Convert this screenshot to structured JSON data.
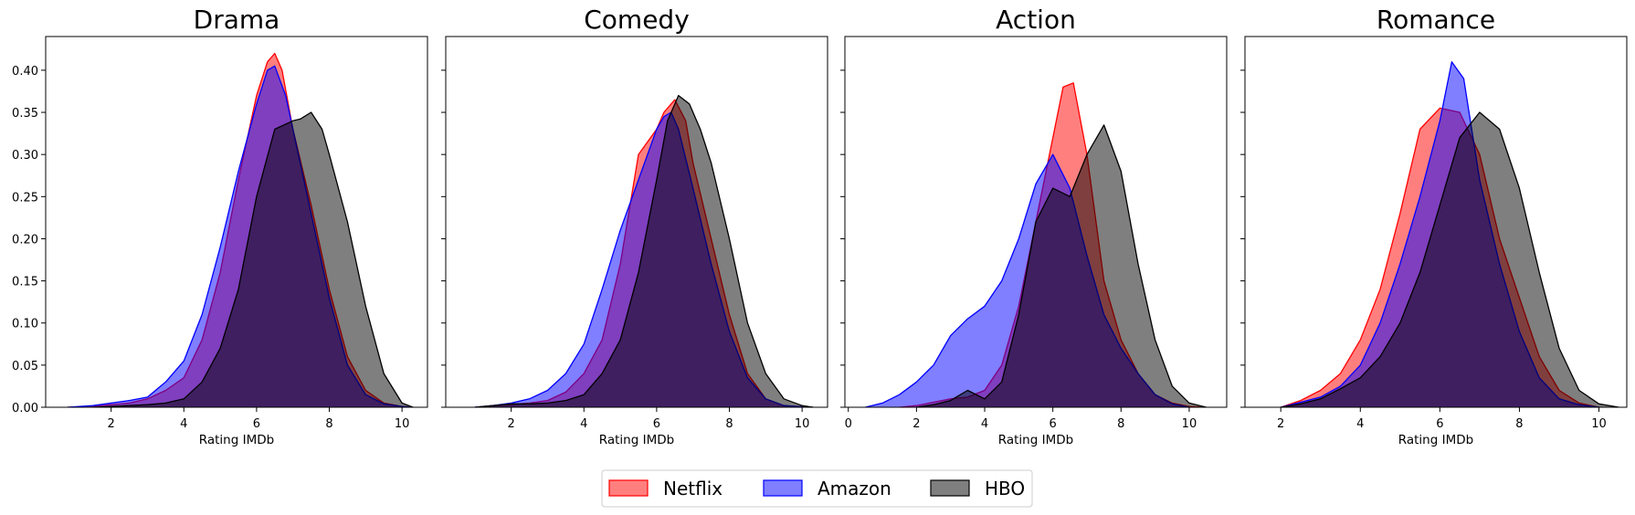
{
  "chart_data": {
    "type": "area",
    "subtype": "kde-density",
    "shared_y": true,
    "ylim": [
      0,
      0.44
    ],
    "yticks": [
      0.0,
      0.05,
      0.1,
      0.15,
      0.2,
      0.25,
      0.3,
      0.35,
      0.4
    ],
    "xlabel": "Rating IMDb",
    "legend": {
      "position": "bottom-center",
      "entries": [
        "Netflix",
        "Amazon",
        "HBO"
      ]
    },
    "colors": {
      "Netflix": "#ff0000",
      "Amazon": "#0000ff",
      "HBO": "#000000"
    },
    "fill_colors": {
      "Netflix": "#ff7f7f",
      "Amazon": "#7f7fff",
      "HBO": "#7f7f7f"
    },
    "panels": [
      {
        "title": "Drama",
        "xlim": [
          0.2,
          10.7
        ],
        "xticks": [
          2,
          4,
          6,
          8,
          10
        ],
        "series": [
          {
            "name": "Netflix",
            "x": [
              0.8,
              1.5,
              2,
              2.5,
              3,
              3.5,
              4,
              4.5,
              5,
              5.5,
              6,
              6.3,
              6.5,
              6.7,
              7,
              7.5,
              8,
              8.5,
              9,
              9.5,
              10,
              10.3
            ],
            "y": [
              0,
              0.001,
              0.003,
              0.005,
              0.01,
              0.02,
              0.035,
              0.08,
              0.16,
              0.27,
              0.37,
              0.41,
              0.42,
              0.4,
              0.33,
              0.24,
              0.14,
              0.06,
              0.02,
              0.005,
              0.001,
              0
            ]
          },
          {
            "name": "Amazon",
            "x": [
              0.8,
              1.5,
              2,
              2.5,
              3,
              3.5,
              4,
              4.5,
              5,
              5.5,
              6,
              6.3,
              6.5,
              6.8,
              7,
              7.5,
              8,
              8.5,
              9,
              9.5,
              10,
              10.3
            ],
            "y": [
              0,
              0.002,
              0.005,
              0.008,
              0.012,
              0.03,
              0.055,
              0.11,
              0.19,
              0.28,
              0.36,
              0.4,
              0.405,
              0.37,
              0.33,
              0.23,
              0.13,
              0.05,
              0.015,
              0.004,
              0.001,
              0
            ]
          },
          {
            "name": "HBO",
            "x": [
              1.5,
              2,
              3,
              3.5,
              4,
              4.5,
              5,
              5.5,
              6,
              6.5,
              7,
              7.2,
              7.5,
              7.8,
              8,
              8.5,
              9,
              9.5,
              10,
              10.3
            ],
            "y": [
              0,
              0.001,
              0.003,
              0.005,
              0.01,
              0.03,
              0.07,
              0.14,
              0.25,
              0.33,
              0.34,
              0.342,
              0.35,
              0.33,
              0.3,
              0.22,
              0.12,
              0.04,
              0.005,
              0
            ]
          }
        ]
      },
      {
        "title": "Comedy",
        "xlim": [
          0.2,
          10.7
        ],
        "xticks": [
          2,
          4,
          6,
          8,
          10
        ],
        "series": [
          {
            "name": "Netflix",
            "x": [
              1,
              1.5,
              2,
              2.5,
              3,
              3.5,
              4,
              4.5,
              5,
              5.5,
              6,
              6.2,
              6.5,
              6.8,
              7,
              7.5,
              8,
              8.5,
              9,
              9.5,
              10,
              10.3
            ],
            "y": [
              0,
              0.002,
              0.003,
              0.005,
              0.008,
              0.018,
              0.04,
              0.08,
              0.17,
              0.3,
              0.33,
              0.35,
              0.365,
              0.34,
              0.29,
              0.2,
              0.11,
              0.04,
              0.01,
              0.002,
              0.0005,
              0
            ]
          },
          {
            "name": "Amazon",
            "x": [
              1,
              1.5,
              2,
              2.5,
              3,
              3.5,
              4,
              4.5,
              5,
              5.5,
              6,
              6.2,
              6.4,
              6.6,
              7,
              7.5,
              8,
              8.5,
              9,
              9.5,
              10,
              10.3
            ],
            "y": [
              0,
              0.002,
              0.005,
              0.01,
              0.02,
              0.04,
              0.075,
              0.14,
              0.21,
              0.27,
              0.33,
              0.345,
              0.35,
              0.33,
              0.26,
              0.17,
              0.09,
              0.035,
              0.01,
              0.002,
              0.0005,
              0
            ]
          },
          {
            "name": "HBO",
            "x": [
              1,
              1.5,
              2,
              2.5,
              3,
              3.5,
              4,
              4.5,
              5,
              5.5,
              6,
              6.3,
              6.6,
              6.9,
              7.2,
              7.5,
              8,
              8.5,
              9,
              9.5,
              10,
              10.3
            ],
            "y": [
              0,
              0.002,
              0.004,
              0.004,
              0.005,
              0.008,
              0.015,
              0.04,
              0.08,
              0.16,
              0.27,
              0.34,
              0.37,
              0.36,
              0.33,
              0.29,
              0.2,
              0.1,
              0.04,
              0.01,
              0.002,
              0
            ]
          }
        ]
      },
      {
        "title": "Action",
        "xlim": [
          -0.1,
          11.1
        ],
        "xticks": [
          0,
          2,
          4,
          6,
          8,
          10
        ],
        "series": [
          {
            "name": "Netflix",
            "x": [
              1.5,
              2,
              2.5,
              3,
              3.5,
              4,
              4.5,
              5,
              5.5,
              6,
              6.3,
              6.6,
              7,
              7.5,
              8,
              8.5,
              9,
              9.5,
              10,
              10.5
            ],
            "y": [
              0,
              0.002,
              0.006,
              0.01,
              0.012,
              0.02,
              0.05,
              0.12,
              0.22,
              0.32,
              0.38,
              0.385,
              0.3,
              0.15,
              0.08,
              0.04,
              0.015,
              0.005,
              0.001,
              0
            ]
          },
          {
            "name": "Amazon",
            "x": [
              0.5,
              1,
              1.5,
              2,
              2.5,
              3,
              3.5,
              4,
              4.5,
              5,
              5.5,
              6,
              6.5,
              7,
              7.5,
              8,
              8.5,
              9,
              9.5,
              10
            ],
            "y": [
              0,
              0.005,
              0.015,
              0.03,
              0.05,
              0.085,
              0.105,
              0.12,
              0.15,
              0.2,
              0.265,
              0.3,
              0.26,
              0.18,
              0.11,
              0.07,
              0.04,
              0.015,
              0.004,
              0
            ]
          },
          {
            "name": "HBO",
            "x": [
              2,
              2.5,
              3,
              3.5,
              4,
              4.5,
              5,
              5.5,
              6,
              6.5,
              7,
              7.5,
              8,
              8.5,
              9,
              9.5,
              10,
              10.5
            ],
            "y": [
              0,
              0.003,
              0.008,
              0.02,
              0.01,
              0.03,
              0.11,
              0.22,
              0.26,
              0.25,
              0.3,
              0.335,
              0.28,
              0.17,
              0.08,
              0.025,
              0.005,
              0
            ]
          }
        ]
      },
      {
        "title": "Romance",
        "xlim": [
          1.1,
          10.7
        ],
        "xticks": [
          2,
          4,
          6,
          8,
          10
        ],
        "series": [
          {
            "name": "Netflix",
            "x": [
              2,
              2.5,
              3,
              3.5,
              4,
              4.5,
              5,
              5.5,
              6,
              6.5,
              7,
              7.5,
              8,
              8.5,
              9,
              9.5,
              10
            ],
            "y": [
              0,
              0.008,
              0.02,
              0.04,
              0.08,
              0.14,
              0.23,
              0.33,
              0.355,
              0.35,
              0.3,
              0.2,
              0.13,
              0.06,
              0.02,
              0.005,
              0
            ]
          },
          {
            "name": "Amazon",
            "x": [
              2,
              2.5,
              3,
              3.5,
              4,
              4.5,
              5,
              5.5,
              6,
              6.3,
              6.6,
              7,
              7.5,
              8,
              8.5,
              9,
              9.5,
              10
            ],
            "y": [
              0,
              0.006,
              0.012,
              0.025,
              0.05,
              0.1,
              0.17,
              0.25,
              0.34,
              0.41,
              0.39,
              0.27,
              0.17,
              0.09,
              0.035,
              0.01,
              0.003,
              0
            ]
          },
          {
            "name": "HBO",
            "x": [
              2,
              2.5,
              3,
              3.5,
              4,
              4.5,
              5,
              5.5,
              6,
              6.5,
              7,
              7.5,
              8,
              8.5,
              9,
              9.5,
              10,
              10.5
            ],
            "y": [
              0,
              0.004,
              0.01,
              0.022,
              0.035,
              0.06,
              0.1,
              0.16,
              0.24,
              0.32,
              0.35,
              0.33,
              0.26,
              0.16,
              0.07,
              0.02,
              0.004,
              0
            ]
          }
        ]
      }
    ]
  }
}
